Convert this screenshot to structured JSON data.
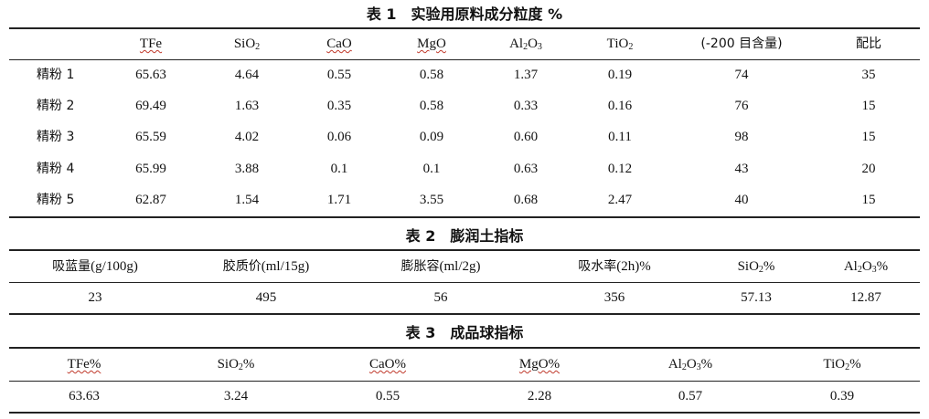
{
  "table1": {
    "caption": "表 1　实验用原料成分粒度 %",
    "headers": [
      "",
      "TFe",
      "SiO2",
      "CaO",
      "MgO",
      "Al2O3",
      "TiO2",
      "(-200 目含量)",
      "配比"
    ],
    "rows": [
      [
        "精粉 1",
        "65.63",
        "4.64",
        "0.55",
        "0.58",
        "1.37",
        "0.19",
        "74",
        "35"
      ],
      [
        "精粉 2",
        "69.49",
        "1.63",
        "0.35",
        "0.58",
        "0.33",
        "0.16",
        "76",
        "15"
      ],
      [
        "精粉 3",
        "65.59",
        "4.02",
        "0.06",
        "0.09",
        "0.60",
        "0.11",
        "98",
        "15"
      ],
      [
        "精粉 4",
        "65.99",
        "3.88",
        "0.1",
        "0.1",
        "0.63",
        "0.12",
        "43",
        "20"
      ],
      [
        "精粉 5",
        "62.87",
        "1.54",
        "1.71",
        "3.55",
        "0.68",
        "2.47",
        "40",
        "15"
      ]
    ]
  },
  "table2": {
    "caption": "表 2　膨润土指标",
    "headers": [
      "吸蓝量(g/100g)",
      "胶质价(ml/15g)",
      "膨胀容(ml/2g)",
      "吸水率(2h)%",
      "SiO2%",
      "Al2O3%"
    ],
    "rows": [
      [
        "23",
        "495",
        "56",
        "356",
        "57.13",
        "12.87"
      ]
    ]
  },
  "table3": {
    "caption": "表 3　成品球指标",
    "headers": [
      "TFe%",
      "SiO2%",
      "CaO%",
      "MgO%",
      "Al2O3%",
      "TiO2%"
    ],
    "rows": [
      [
        "63.63",
        "3.24",
        "0.55",
        "2.28",
        "0.57",
        "0.39"
      ]
    ]
  }
}
